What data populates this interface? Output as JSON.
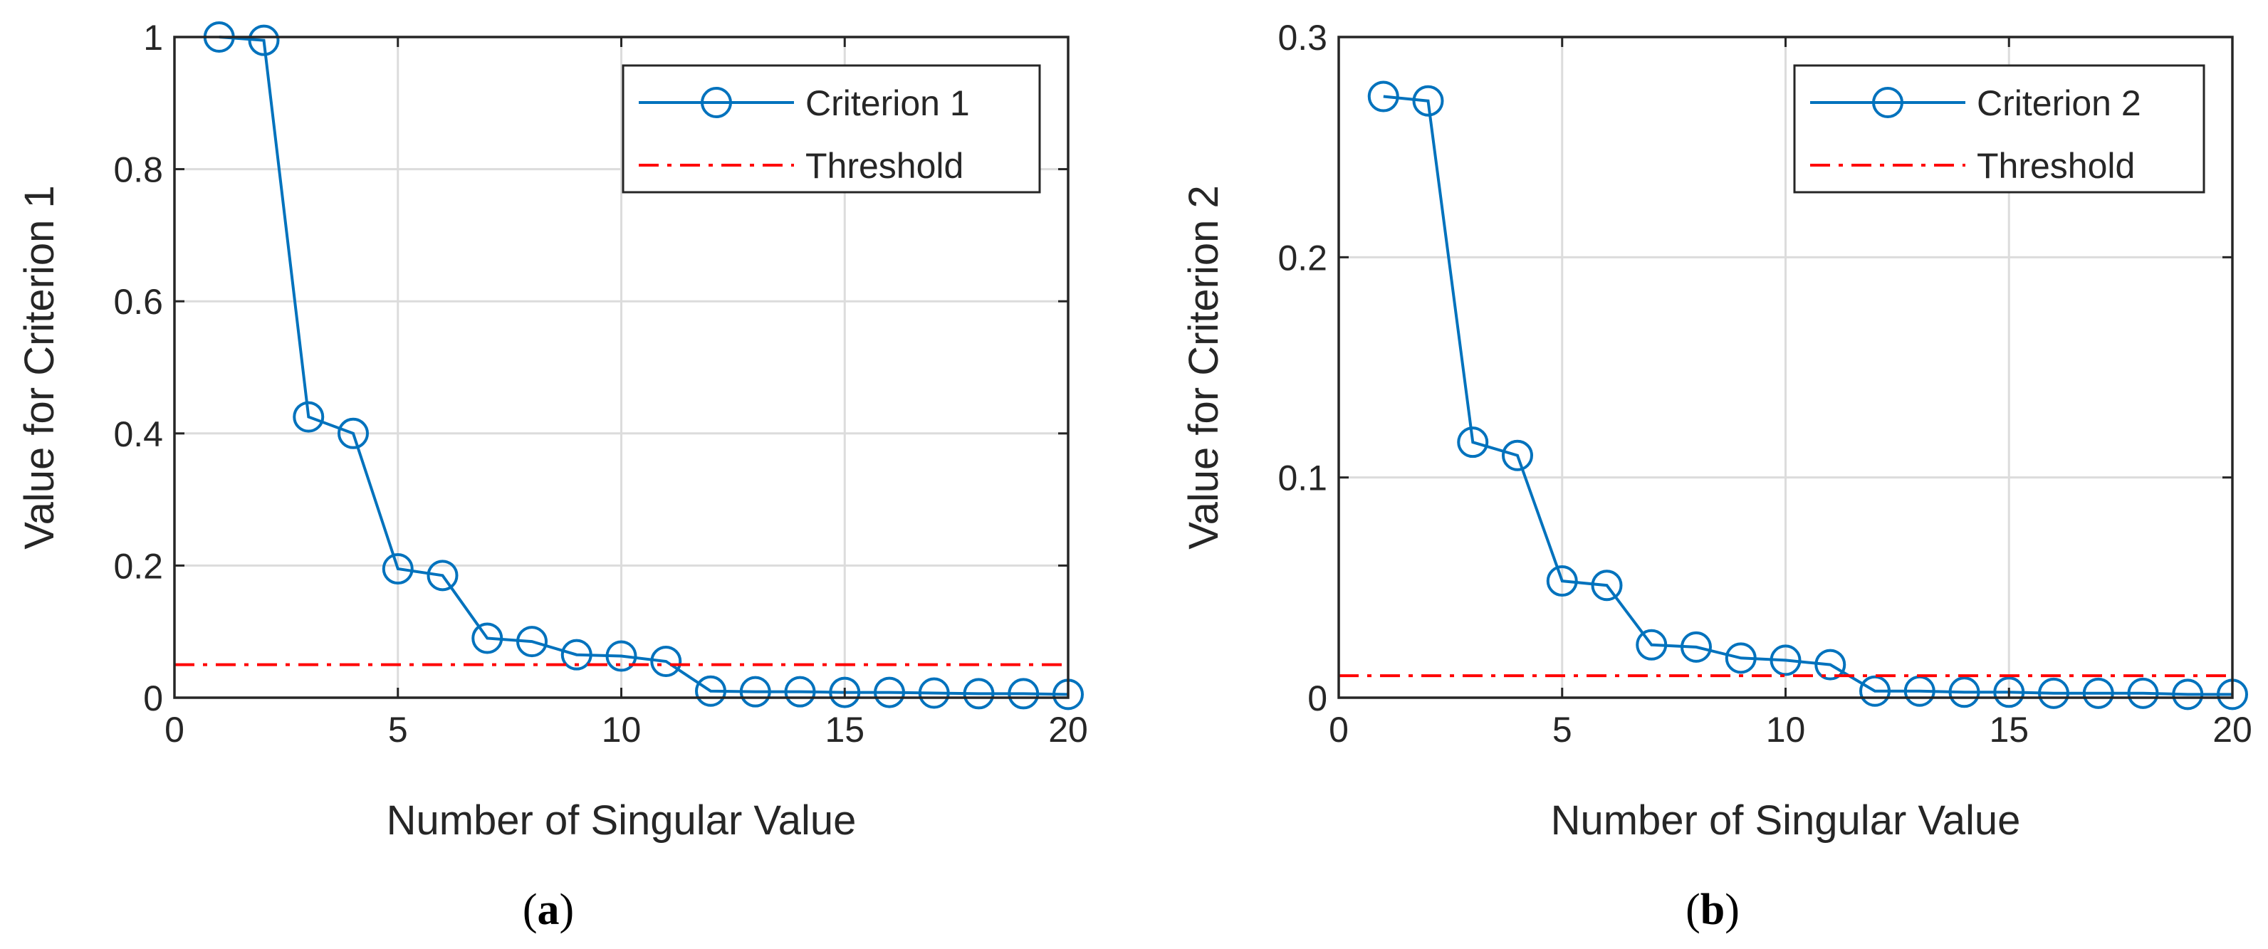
{
  "chart_data": [
    {
      "type": "line",
      "panel_label": "a",
      "xlabel": "Number of Singular Value",
      "ylabel": "Value for Criterion 1",
      "xlim": [
        0,
        20
      ],
      "ylim": [
        0,
        1
      ],
      "xticks": [
        0,
        5,
        10,
        15,
        20
      ],
      "yticks": [
        0,
        0.2,
        0.4,
        0.6,
        0.8,
        1
      ],
      "ytick_labels": [
        "0",
        "0.2",
        "0.4",
        "0.6",
        "0.8",
        "1"
      ],
      "grid": true,
      "legend_position": "top-right",
      "series": [
        {
          "name": "Criterion 1",
          "style": "line-circle",
          "color": "#0072BD",
          "x": [
            1,
            2,
            3,
            4,
            5,
            6,
            7,
            8,
            9,
            10,
            11,
            12,
            13,
            14,
            15,
            16,
            17,
            18,
            19,
            20
          ],
          "values": [
            1.0,
            0.995,
            0.425,
            0.4,
            0.195,
            0.185,
            0.09,
            0.085,
            0.065,
            0.063,
            0.055,
            0.01,
            0.009,
            0.009,
            0.008,
            0.008,
            0.007,
            0.006,
            0.006,
            0.005
          ]
        },
        {
          "name": "Threshold",
          "style": "dash-dot",
          "color": "#FF0000",
          "x": [
            0,
            20
          ],
          "values": [
            0.05,
            0.05
          ]
        }
      ]
    },
    {
      "type": "line",
      "panel_label": "b",
      "xlabel": "Number of Singular Value",
      "ylabel": "Value for Criterion 2",
      "xlim": [
        0,
        20
      ],
      "ylim": [
        0,
        0.3
      ],
      "xticks": [
        0,
        5,
        10,
        15,
        20
      ],
      "yticks": [
        0,
        0.1,
        0.2,
        0.3
      ],
      "ytick_labels": [
        "0",
        "0.1",
        "0.2",
        "0.3"
      ],
      "grid": true,
      "legend_position": "top-right",
      "series": [
        {
          "name": "Criterion 2",
          "style": "line-circle",
          "color": "#0072BD",
          "x": [
            1,
            2,
            3,
            4,
            5,
            6,
            7,
            8,
            9,
            10,
            11,
            12,
            13,
            14,
            15,
            16,
            17,
            18,
            19,
            20
          ],
          "values": [
            0.273,
            0.271,
            0.116,
            0.11,
            0.053,
            0.051,
            0.024,
            0.023,
            0.018,
            0.017,
            0.015,
            0.003,
            0.003,
            0.0025,
            0.0025,
            0.002,
            0.002,
            0.002,
            0.0015,
            0.0015
          ]
        },
        {
          "name": "Threshold",
          "style": "dash-dot",
          "color": "#FF0000",
          "x": [
            0,
            20
          ],
          "values": [
            0.01,
            0.01
          ]
        }
      ]
    }
  ]
}
